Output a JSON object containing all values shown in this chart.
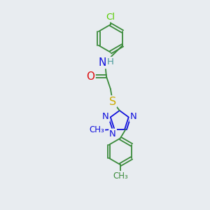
{
  "bg_color": "#e8ecf0",
  "atom_colors": {
    "C": "#3a8a3a",
    "N": "#1010dd",
    "O": "#dd1010",
    "S": "#ccaa00",
    "Cl": "#55cc00",
    "H": "#4a9a9a"
  },
  "bond_color": "#3a8a3a",
  "font_size": 9.5
}
